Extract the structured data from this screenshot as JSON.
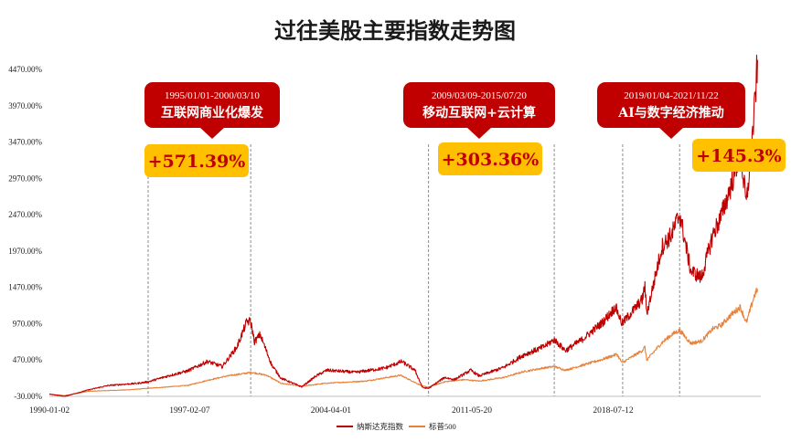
{
  "chart_data": {
    "type": "line",
    "title": "过往美股主要指数走势图",
    "xlabel": "",
    "ylabel": "",
    "x_ticks": [
      "1990-01-02",
      "1997-02-07",
      "2004-04-01",
      "2011-05-20",
      "2018-07-12"
    ],
    "y_ticks": [
      "-30.00%",
      "470.00%",
      "970.00%",
      "1470.00%",
      "1970.00%",
      "2470.00%",
      "2970.00%",
      "3470.00%",
      "3970.00%",
      "4470.00%"
    ],
    "ylim": [
      -30,
      4700
    ],
    "grid": false,
    "legend_position": "bottom",
    "series": [
      {
        "name": "纳斯达克指数",
        "color": "#c00000",
        "points": [
          [
            "1990-01-02",
            0
          ],
          [
            "1990-10-15",
            -30
          ],
          [
            "1991-12-31",
            60
          ],
          [
            "1993-01-01",
            120
          ],
          [
            "1994-06-30",
            150
          ],
          [
            "1995-01-01",
            170
          ],
          [
            "1996-01-01",
            250
          ],
          [
            "1997-01-01",
            320
          ],
          [
            "1998-01-01",
            450
          ],
          [
            "1998-10-01",
            380
          ],
          [
            "1999-06-30",
            650
          ],
          [
            "1999-12-31",
            1000
          ],
          [
            "2000-03-10",
            1000
          ],
          [
            "2000-05-20",
            720
          ],
          [
            "2000-09-01",
            820
          ],
          [
            "2001-04-04",
            400
          ],
          [
            "2001-09-21",
            220
          ],
          [
            "2002-10-09",
            100
          ],
          [
            "2003-06-30",
            250
          ],
          [
            "2004-01-20",
            330
          ],
          [
            "2005-06-30",
            300
          ],
          [
            "2006-12-31",
            360
          ],
          [
            "2007-10-31",
            450
          ],
          [
            "2008-06-30",
            330
          ],
          [
            "2008-11-20",
            90
          ],
          [
            "2009-03-09",
            80
          ],
          [
            "2009-12-31",
            230
          ],
          [
            "2010-07-01",
            200
          ],
          [
            "2011-04-29",
            330
          ],
          [
            "2011-10-03",
            250
          ],
          [
            "2012-12-31",
            370
          ],
          [
            "2013-12-31",
            540
          ],
          [
            "2014-12-31",
            650
          ],
          [
            "2015-07-20",
            750
          ],
          [
            "2016-02-11",
            600
          ],
          [
            "2016-12-31",
            760
          ],
          [
            "2017-12-31",
            990
          ],
          [
            "2018-08-29",
            1200
          ],
          [
            "2018-12-24",
            970
          ],
          [
            "2019-12-31",
            1300
          ],
          [
            "2020-02-19",
            1490
          ],
          [
            "2020-03-23",
            1100
          ],
          [
            "2020-12-31",
            2030
          ],
          [
            "2021-06-30",
            2200
          ],
          [
            "2021-11-22",
            2480
          ],
          [
            "2022-06-16",
            1700
          ],
          [
            "2022-12-28",
            1600
          ],
          [
            "2023-07-31",
            2200
          ],
          [
            "2023-12-31",
            2450
          ],
          [
            "2024-07-10",
            2900
          ],
          [
            "2024-12-16",
            3350
          ],
          [
            "2025-04-08",
            2600
          ],
          [
            "2025-08-31",
            3850
          ],
          [
            "2025-10-31",
            4600
          ]
        ]
      },
      {
        "name": "标普500",
        "color": "#e8823b",
        "points": [
          [
            "1990-01-02",
            0
          ],
          [
            "1990-10-11",
            -20
          ],
          [
            "1991-12-31",
            40
          ],
          [
            "1993-12-31",
            60
          ],
          [
            "1995-01-01",
            80
          ],
          [
            "1996-12-31",
            120
          ],
          [
            "1997-12-31",
            190
          ],
          [
            "1998-12-31",
            250
          ],
          [
            "1999-12-31",
            290
          ],
          [
            "2000-03-24",
            300
          ],
          [
            "2000-12-31",
            260
          ],
          [
            "2001-09-21",
            150
          ],
          [
            "2002-10-09",
            110
          ],
          [
            "2003-12-31",
            150
          ],
          [
            "2005-12-31",
            180
          ],
          [
            "2007-10-09",
            260
          ],
          [
            "2008-11-20",
            110
          ],
          [
            "2009-03-09",
            95
          ],
          [
            "2009-12-31",
            170
          ],
          [
            "2010-12-31",
            200
          ],
          [
            "2011-10-03",
            180
          ],
          [
            "2012-12-31",
            230
          ],
          [
            "2013-12-31",
            310
          ],
          [
            "2014-12-31",
            360
          ],
          [
            "2015-07-20",
            380
          ],
          [
            "2016-02-11",
            330
          ],
          [
            "2016-12-31",
            400
          ],
          [
            "2017-12-31",
            480
          ],
          [
            "2018-09-20",
            550
          ],
          [
            "2018-12-24",
            430
          ],
          [
            "2019-12-31",
            600
          ],
          [
            "2020-02-19",
            650
          ],
          [
            "2020-03-23",
            470
          ],
          [
            "2020-12-31",
            710
          ],
          [
            "2021-06-30",
            820
          ],
          [
            "2021-11-22",
            880
          ],
          [
            "2022-06-16",
            700
          ],
          [
            "2022-12-28",
            730
          ],
          [
            "2023-07-31",
            900
          ],
          [
            "2023-12-31",
            950
          ],
          [
            "2024-07-10",
            1100
          ],
          [
            "2024-12-16",
            1200
          ],
          [
            "2025-04-08",
            980
          ],
          [
            "2025-08-31",
            1350
          ],
          [
            "2025-10-31",
            1450
          ]
        ]
      }
    ],
    "vertical_markers": [
      "1995-01-01",
      "2000-03-10",
      "2009-03-09",
      "2015-07-20",
      "2019-01-04",
      "2021-11-22"
    ],
    "annotations": [
      {
        "period": "1995/01/01-2000/03/10",
        "label": "互联网商业化爆发",
        "gain": "+571.39%"
      },
      {
        "period": "2009/03/09-2015/07/20",
        "label": "移动互联网+云计算",
        "gain": "+303.36%"
      },
      {
        "period": "2019/01/04-2021/11/22",
        "label": "AI与数字经济推动",
        "gain": "+145.3%"
      }
    ]
  },
  "colors": {
    "callout_bg": "#c00000",
    "gain_bg": "#ffc000",
    "gain_text": "#c00000",
    "marker_line": "#8c8c8c",
    "axis_line": "#bfbfbf"
  }
}
